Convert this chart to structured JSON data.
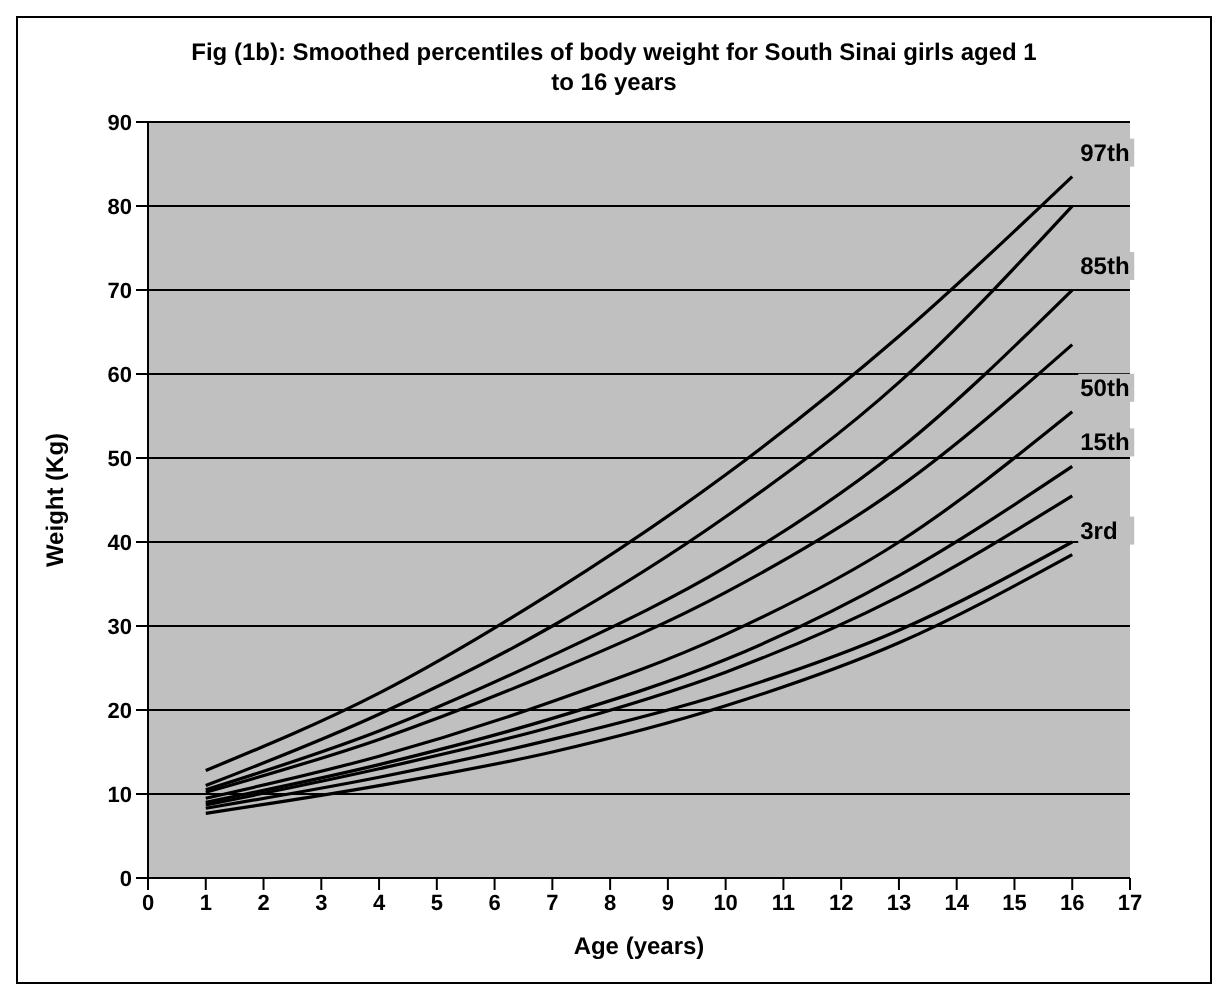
{
  "chart_data": {
    "type": "line",
    "title": "Fig (1b): Smoothed percentiles of body weight  for South Sinai girls aged 1 to 16 years",
    "xlabel": "Age (years)",
    "ylabel": "Weight (Kg)",
    "x": [
      1,
      4,
      7,
      10,
      13,
      16
    ],
    "xlim": [
      0,
      17
    ],
    "xticks": [
      0,
      1,
      2,
      3,
      4,
      5,
      6,
      7,
      8,
      9,
      10,
      11,
      12,
      13,
      14,
      15,
      16,
      17
    ],
    "ylim": [
      0,
      90
    ],
    "yticks": [
      0,
      10,
      20,
      30,
      40,
      50,
      60,
      70,
      80,
      90
    ],
    "grid": "y",
    "legend": false,
    "marker": "none",
    "line_style": "solid",
    "series": [
      {
        "name": "97th",
        "color": "#000000",
        "values": [
          12.8,
          22,
          34,
          48,
          64.5,
          83.5
        ]
      },
      {
        "color": "#000000",
        "values": [
          11,
          19.5,
          30,
          43,
          59,
          80
        ]
      },
      {
        "name": "85th",
        "color": "#000000",
        "values": [
          10.5,
          17.5,
          26.5,
          37,
          51,
          70
        ]
      },
      {
        "color": "#000000",
        "values": [
          10.2,
          16.5,
          24.5,
          34,
          46.5,
          63.5
        ]
      },
      {
        "name": "50th",
        "color": "#000000",
        "values": [
          9.5,
          14.5,
          21,
          29,
          40,
          55.5
        ]
      },
      {
        "name": "15th",
        "color": "#000000",
        "values": [
          9,
          13.5,
          19,
          26,
          36,
          49
        ]
      },
      {
        "color": "#000000",
        "values": [
          8.7,
          13,
          18,
          24.5,
          33.5,
          45.5
        ]
      },
      {
        "color": "#000000",
        "values": [
          8.3,
          12,
          16.5,
          22,
          29.5,
          40
        ]
      },
      {
        "name": "3rd",
        "color": "#000000",
        "values": [
          7.7,
          11,
          15,
          20.5,
          28,
          38.5
        ]
      }
    ]
  }
}
